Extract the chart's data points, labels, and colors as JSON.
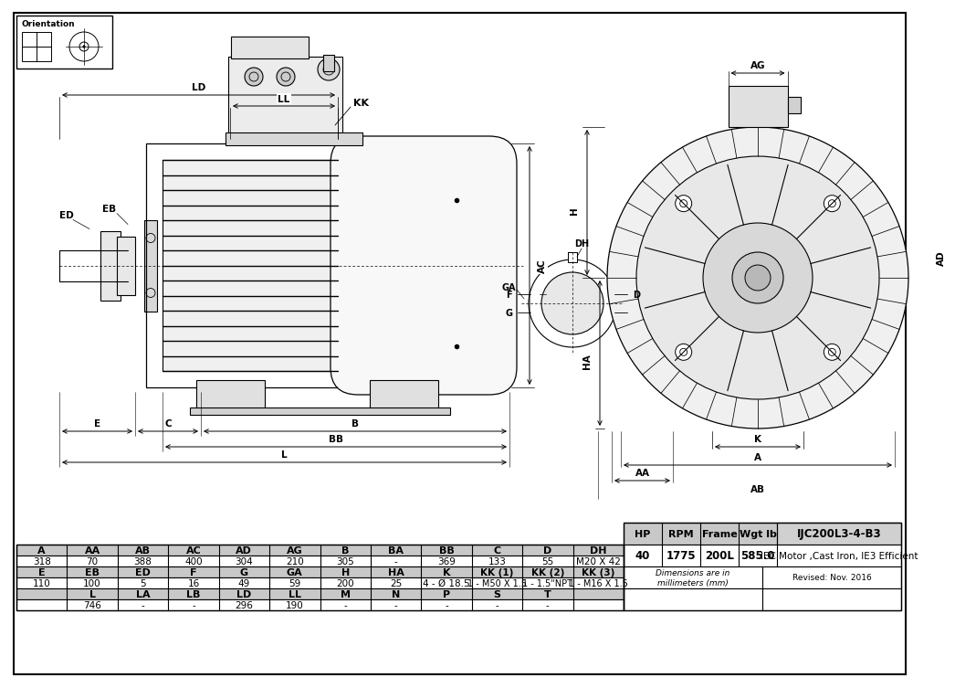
{
  "bg_color": "#ffffff",
  "table_data": {
    "row1_headers": [
      "A",
      "AA",
      "AB",
      "AC",
      "AD",
      "AG",
      "B",
      "BA",
      "BB",
      "C",
      "D",
      "DH"
    ],
    "row1_values": [
      "318",
      "70",
      "388",
      "400",
      "304",
      "210",
      "305",
      "-",
      "369",
      "133",
      "55",
      "M20 X 42"
    ],
    "row2_headers": [
      "E",
      "EB",
      "ED",
      "F",
      "G",
      "GA",
      "H",
      "HA",
      "K",
      "KK (1)",
      "KK (2)",
      "KK (3)"
    ],
    "row2_values": [
      "110",
      "100",
      "5",
      "16",
      "49",
      "59",
      "200",
      "25",
      "4 - Ø 18.5",
      "1 - M50 X 1.5",
      "1 - 1.5\"NPT",
      "1 - M16 X 1.5"
    ],
    "row3_headers": [
      "",
      "L",
      "LA",
      "LB",
      "LD",
      "LL",
      "M",
      "N",
      "P",
      "S",
      "T"
    ],
    "row3_values": [
      "",
      "746",
      "-",
      "-",
      "296",
      "190",
      "-",
      "-",
      "-",
      "-",
      "-"
    ],
    "info_headers": [
      "HP",
      "RPM",
      "Frame",
      "Wgt lb"
    ],
    "info_values": [
      "40",
      "1775",
      "200L",
      "585.0"
    ],
    "model": "IJC200L3-4-B3",
    "description": "IEC Motor ,Cast Iron, IE3 Efficient",
    "dim_note": "Dimensions are in\nmillimeters (mm)",
    "revised": "Revised: Nov. 2016"
  }
}
